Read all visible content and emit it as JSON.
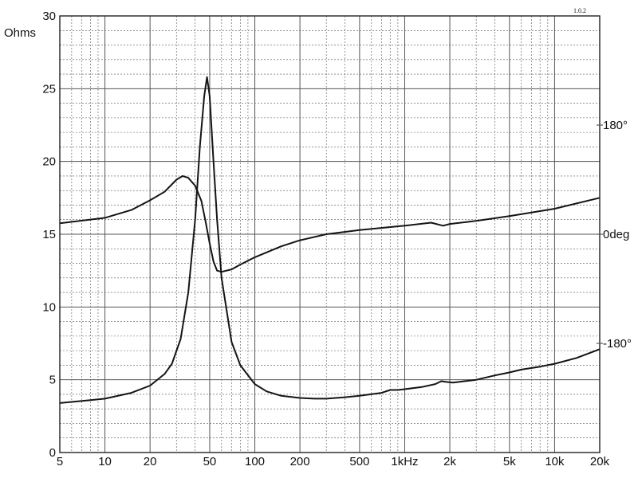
{
  "chart_data": {
    "type": "line",
    "title": "",
    "revision_mark": "1.0.2",
    "xlabel": "",
    "ylabel": "Ohms",
    "x_scale": "log",
    "xlim": [
      5,
      20000
    ],
    "ylim": [
      0,
      30
    ],
    "y2lim": [
      -360,
      360
    ],
    "grid": true,
    "x_ticks": [
      {
        "value": 5,
        "label": "5"
      },
      {
        "value": 10,
        "label": "10"
      },
      {
        "value": 20,
        "label": "20"
      },
      {
        "value": 50,
        "label": "50"
      },
      {
        "value": 100,
        "label": "100"
      },
      {
        "value": 200,
        "label": "200"
      },
      {
        "value": 500,
        "label": "500"
      },
      {
        "value": 1000,
        "label": "1kHz"
      },
      {
        "value": 2000,
        "label": "2k"
      },
      {
        "value": 5000,
        "label": "5k"
      },
      {
        "value": 10000,
        "label": "10k"
      },
      {
        "value": 20000,
        "label": "20k"
      }
    ],
    "y_ticks": [
      0,
      5,
      10,
      15,
      20,
      25,
      30
    ],
    "y2_ticks": [
      {
        "value": 180,
        "label": "180°"
      },
      {
        "value": 0,
        "label": "0deg"
      },
      {
        "value": -180,
        "label": "-180°"
      }
    ],
    "series": [
      {
        "axis": "left",
        "x": [
          5,
          8,
          10,
          15,
          20,
          25,
          28,
          32,
          36,
          40,
          43,
          46,
          48,
          50,
          53,
          56,
          60,
          70,
          80,
          100,
          120,
          150,
          200,
          250,
          300,
          400,
          500,
          700,
          800,
          900,
          1000,
          1300,
          1600,
          1750,
          1900,
          2100,
          2500,
          3000,
          4000,
          5000,
          6000,
          8000,
          10000,
          14000,
          20000
        ],
        "values": [
          3.4,
          3.6,
          3.7,
          4.1,
          4.6,
          5.4,
          6.1,
          7.8,
          11.0,
          16.0,
          21.0,
          24.5,
          25.8,
          24.5,
          20.0,
          16.0,
          12.0,
          7.6,
          6.0,
          4.7,
          4.2,
          3.9,
          3.75,
          3.7,
          3.7,
          3.8,
          3.9,
          4.1,
          4.3,
          4.3,
          4.35,
          4.5,
          4.7,
          4.9,
          4.85,
          4.8,
          4.9,
          5.0,
          5.3,
          5.5,
          5.7,
          5.9,
          6.1,
          6.5,
          7.1
        ]
      },
      {
        "axis": "right",
        "x": [
          5,
          10,
          15,
          20,
          25,
          30,
          33,
          36,
          40,
          44,
          47,
          50,
          53,
          56,
          60,
          70,
          80,
          100,
          150,
          200,
          300,
          500,
          1000,
          1500,
          1800,
          2000,
          3000,
          5000,
          10000,
          20000
        ],
        "values": [
          18,
          27,
          40,
          56,
          70,
          90,
          96,
          93,
          80,
          55,
          20,
          -15,
          -45,
          -60,
          -62,
          -58,
          -50,
          -38,
          -20,
          -10,
          0,
          7,
          14,
          19,
          14,
          17,
          22,
          30,
          42,
          60
        ]
      }
    ],
    "colors": {
      "background": "#ffffff",
      "grid": "#555555",
      "trace": "#141414",
      "frame": "#222222"
    }
  }
}
